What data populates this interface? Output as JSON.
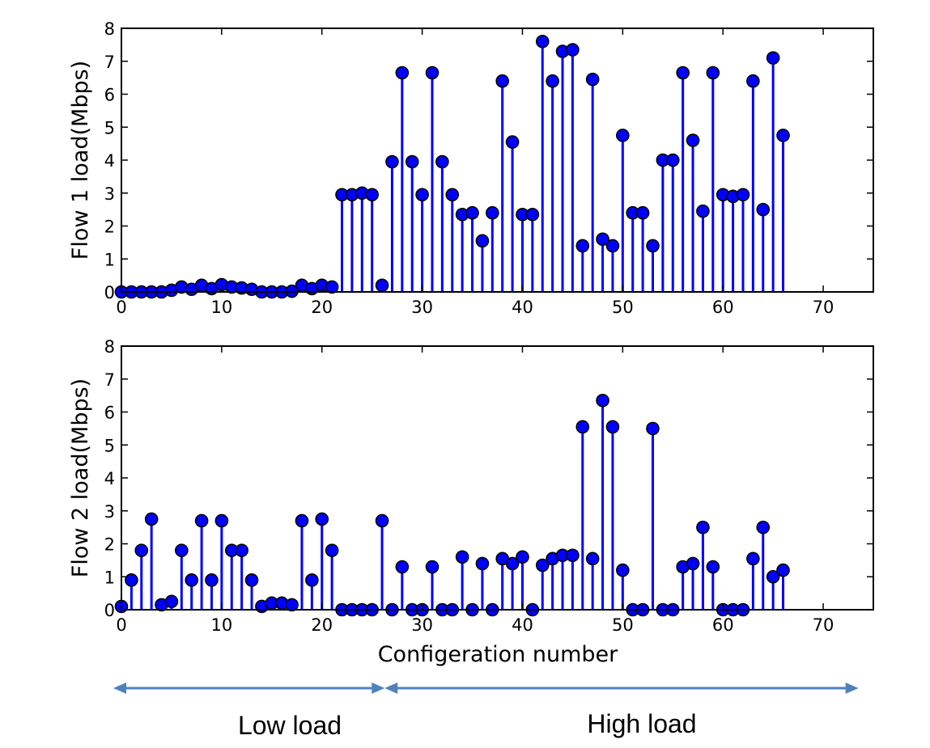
{
  "chart_data": [
    {
      "type": "stem",
      "ylabel": "Flow 1 load(Mbps)",
      "xlabel": "",
      "xlim": [
        0,
        75
      ],
      "ylim": [
        0,
        8
      ],
      "xticks": [
        0,
        10,
        20,
        30,
        40,
        50,
        60,
        70
      ],
      "yticks": [
        0,
        1,
        2,
        3,
        4,
        5,
        6,
        7,
        8
      ],
      "marker_color": "#0000ff",
      "x": [
        0,
        1,
        2,
        3,
        4,
        5,
        6,
        7,
        8,
        9,
        10,
        11,
        12,
        13,
        14,
        15,
        16,
        17,
        18,
        19,
        20,
        21,
        22,
        23,
        24,
        25,
        26,
        27,
        28,
        29,
        30,
        31,
        32,
        33,
        34,
        35,
        36,
        37,
        38,
        39,
        40,
        41,
        42,
        43,
        44,
        45,
        46,
        47,
        48,
        49,
        50,
        51,
        52,
        53,
        54,
        55,
        56,
        57,
        58,
        59,
        60,
        61,
        62,
        63,
        64,
        65,
        66
      ],
      "values": [
        0,
        0,
        0,
        0,
        0,
        0.05,
        0.15,
        0.08,
        0.2,
        0.1,
        0.22,
        0.15,
        0.12,
        0.08,
        0,
        0,
        0,
        0.02,
        0.2,
        0.1,
        0.2,
        0.15,
        2.95,
        2.95,
        3.0,
        2.95,
        0.2,
        3.95,
        6.65,
        3.95,
        2.95,
        6.65,
        3.95,
        2.95,
        2.35,
        2.4,
        1.55,
        2.4,
        6.4,
        4.55,
        2.35,
        2.35,
        7.6,
        6.4,
        7.3,
        7.35,
        1.4,
        6.45,
        1.6,
        1.4,
        4.75,
        2.4,
        2.4,
        1.4,
        4.0,
        4.0,
        6.65,
        4.6,
        2.45,
        6.65,
        2.95,
        2.9,
        2.95,
        6.4,
        2.5,
        7.1,
        4.75
      ]
    },
    {
      "type": "stem",
      "ylabel": "Flow 2 load(Mbps)",
      "xlabel": "Configeration number",
      "xlim": [
        0,
        75
      ],
      "ylim": [
        0,
        8
      ],
      "xticks": [
        0,
        10,
        20,
        30,
        40,
        50,
        60,
        70
      ],
      "yticks": [
        0,
        1,
        2,
        3,
        4,
        5,
        6,
        7,
        8
      ],
      "marker_color": "#0000ff",
      "x": [
        0,
        1,
        2,
        3,
        4,
        5,
        6,
        7,
        8,
        9,
        10,
        11,
        12,
        13,
        14,
        15,
        16,
        17,
        18,
        19,
        20,
        21,
        22,
        23,
        24,
        25,
        26,
        27,
        28,
        29,
        30,
        31,
        32,
        33,
        34,
        35,
        36,
        37,
        38,
        39,
        40,
        41,
        42,
        43,
        44,
        45,
        46,
        47,
        48,
        49,
        50,
        51,
        52,
        53,
        54,
        55,
        56,
        57,
        58,
        59,
        60,
        61,
        62,
        63,
        64,
        65,
        66
      ],
      "values": [
        0.1,
        0.9,
        1.8,
        2.75,
        0.15,
        0.25,
        1.8,
        0.9,
        2.7,
        0.9,
        2.7,
        1.8,
        1.8,
        0.9,
        0.1,
        0.2,
        0.2,
        0.15,
        2.7,
        0.9,
        2.75,
        1.8,
        0,
        0,
        0,
        0,
        2.7,
        0,
        1.3,
        0,
        0,
        1.3,
        0,
        0,
        1.6,
        0,
        1.4,
        0,
        1.55,
        1.4,
        1.6,
        0,
        1.35,
        1.55,
        1.65,
        1.65,
        5.55,
        1.55,
        6.35,
        5.55,
        1.2,
        0,
        0,
        5.5,
        0,
        0,
        1.3,
        1.4,
        2.5,
        1.3,
        0,
        0,
        0,
        1.55,
        2.5,
        1.0,
        1.2
      ]
    }
  ],
  "regions": {
    "low_label": "Low load",
    "high_label": "High load",
    "low_range": [
      0,
      26.5
    ],
    "high_range": [
      26.5,
      74
    ],
    "arrow_color": "#4f81bd"
  }
}
